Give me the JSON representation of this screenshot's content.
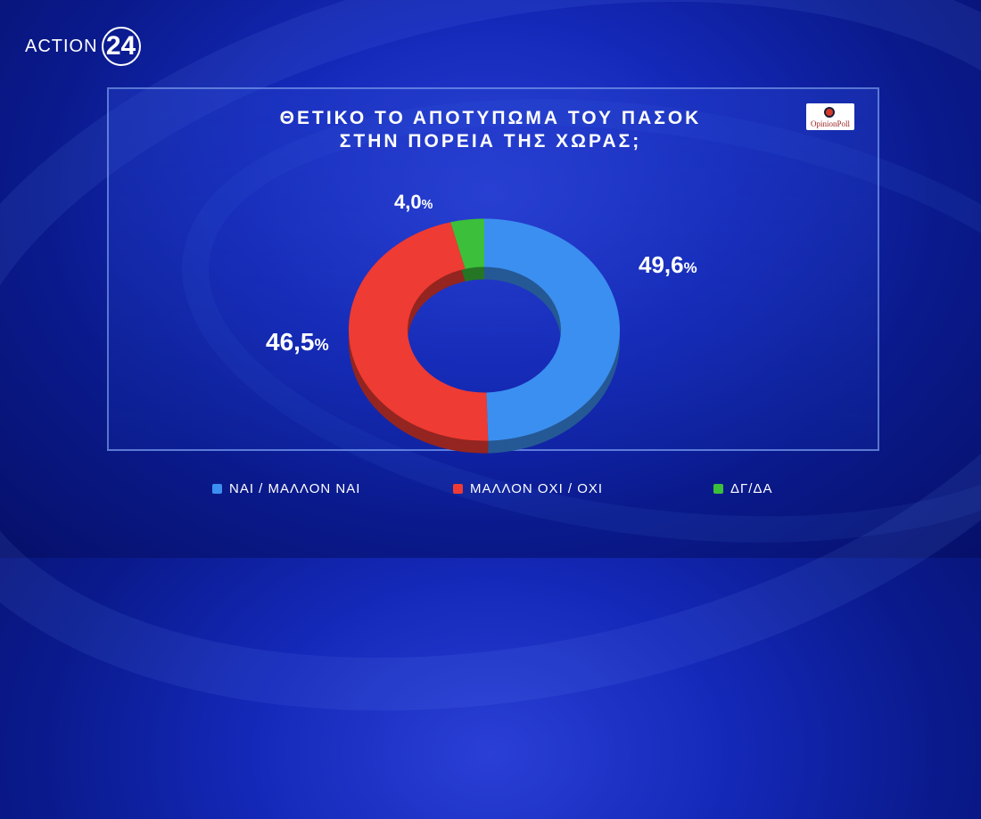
{
  "channel": {
    "logo_text": "ACTION",
    "logo_number": "24"
  },
  "badge": {
    "text": "OpinionPoll"
  },
  "chart_data": {
    "type": "pie",
    "title_lines": [
      "ΘΕΤΙΚΟ ΤΟ ΑΠΟΤΥΠΩΜΑ ΤΟΥ ΠΑΣΟΚ",
      "ΣΤΗΝ ΠΟΡΕΙΑ ΤΗΣ ΧΩΡΑΣ;"
    ],
    "slices": [
      {
        "label": "ΝΑΙ / ΜΑΛΛΟΝ ΝΑΙ",
        "value": 49.6,
        "display": "49,6",
        "color": "#3b8ff0"
      },
      {
        "label": "ΜΑΛΛΟΝ ΟΧΙ / ΟΧΙ",
        "value": 46.5,
        "display": "46,5",
        "color": "#ee3b33"
      },
      {
        "label": "ΔΓ/ΔΑ",
        "value": 4.0,
        "display": "4,0",
        "color": "#3cbf3a"
      }
    ],
    "unit": "%",
    "legend_position": "bottom"
  }
}
